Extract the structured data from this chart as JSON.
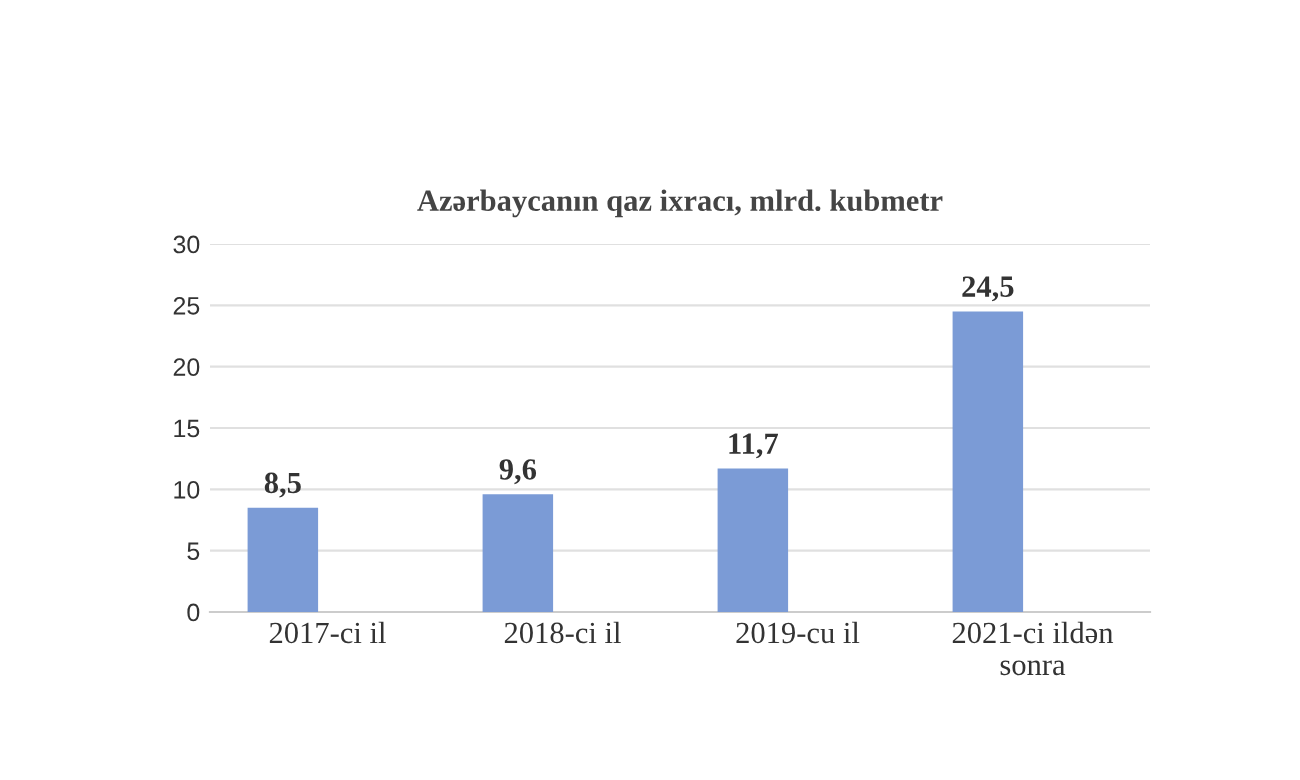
{
  "chart_data": {
    "type": "bar",
    "title": "Azərbaycanın qaz ixracı, mlrd. kubmetr",
    "categories": [
      "2017-ci il",
      "2018-ci il",
      "2019-cu il",
      "2021-ci ildən\nsonra"
    ],
    "values": [
      8.5,
      9.6,
      11.7,
      24.5
    ],
    "value_labels": [
      "8,5",
      "9,6",
      "11,7",
      "24,5"
    ],
    "color": "#7b9bd6",
    "ylim": [
      0,
      30
    ],
    "yticks": [
      0,
      5,
      10,
      15,
      20,
      25,
      30
    ],
    "grid": "y",
    "legend": false
  }
}
